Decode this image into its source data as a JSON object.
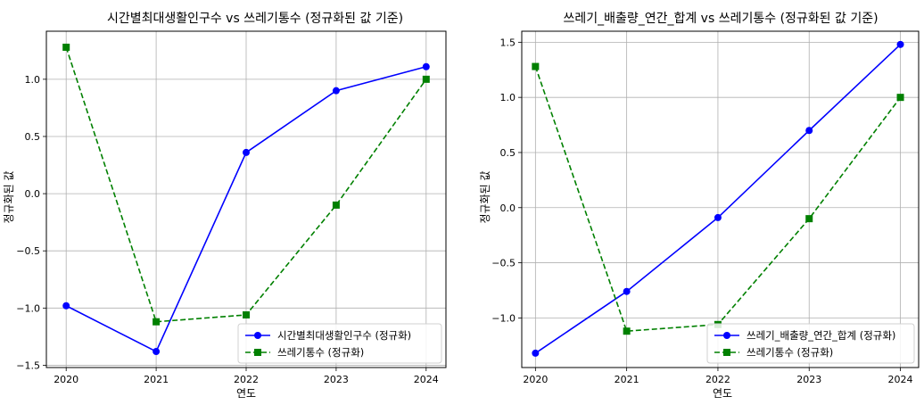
{
  "chart_data": [
    {
      "type": "line",
      "title": "시간별최대생활인구수 vs 쓰레기통수 (정규화된 값 기준)",
      "xlabel": "연도",
      "ylabel": "정규화된 값",
      "x": [
        2020,
        2021,
        2022,
        2023,
        2024
      ],
      "x_tick_labels": [
        "2020",
        "2021",
        "2022",
        "2023",
        "2024"
      ],
      "y_ticks": [
        -1.5,
        -1.0,
        -0.5,
        0.0,
        0.5,
        1.0
      ],
      "y_tick_labels": [
        "−1.5",
        "−1.0",
        "−0.5",
        "0.0",
        "0.5",
        "1.0"
      ],
      "ylim": [
        -1.52,
        1.42
      ],
      "grid": true,
      "legend_position": "lower-right",
      "series": [
        {
          "name": "시간별최대생활인구수 (정규화)",
          "color": "#0000ff",
          "linestyle": "solid",
          "marker": "circle",
          "values": [
            -0.98,
            -1.38,
            0.36,
            0.9,
            1.11
          ]
        },
        {
          "name": "쓰레기통수 (정규화)",
          "color": "#008000",
          "linestyle": "dashed",
          "marker": "square",
          "values": [
            1.28,
            -1.12,
            -1.06,
            -0.1,
            1.0
          ]
        }
      ]
    },
    {
      "type": "line",
      "title": "쓰레기_배출량_연간_합계 vs 쓰레기통수 (정규화된 값 기준)",
      "xlabel": "연도",
      "ylabel": "정규화된 값",
      "x": [
        2020,
        2021,
        2022,
        2023,
        2024
      ],
      "x_tick_labels": [
        "2020",
        "2021",
        "2022",
        "2023",
        "2024"
      ],
      "y_ticks": [
        -1.0,
        -0.5,
        0.0,
        0.5,
        1.0,
        1.5
      ],
      "y_tick_labels": [
        "−1.0",
        "−0.5",
        "0.0",
        "0.5",
        "1.0",
        "1.5"
      ],
      "ylim": [
        -1.45,
        1.6
      ],
      "grid": true,
      "legend_position": "lower-right",
      "series": [
        {
          "name": "쓰레기_배출량_연간_합계 (정규화)",
          "color": "#0000ff",
          "linestyle": "solid",
          "marker": "circle",
          "values": [
            -1.32,
            -0.76,
            -0.09,
            0.7,
            1.48
          ]
        },
        {
          "name": "쓰레기통수 (정규화)",
          "color": "#008000",
          "linestyle": "dashed",
          "marker": "square",
          "values": [
            1.28,
            -1.12,
            -1.06,
            -0.1,
            1.0
          ]
        }
      ]
    }
  ]
}
